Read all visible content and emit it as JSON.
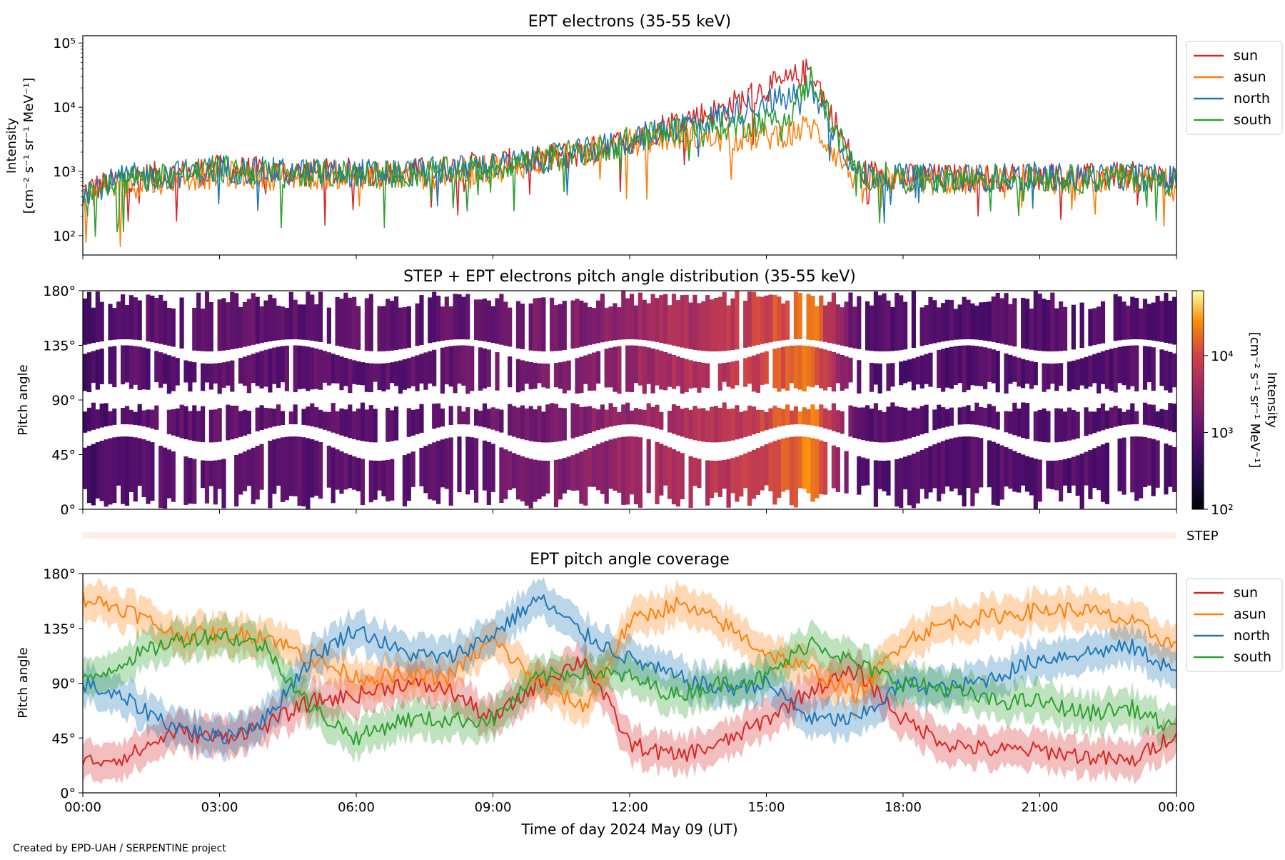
{
  "figure": {
    "credit": "Created by EPD-UAH / SERPENTINE project",
    "xlabel": "Time of day 2024 May 09 (UT)",
    "xticks": [
      "00:00",
      "03:00",
      "06:00",
      "09:00",
      "12:00",
      "15:00",
      "18:00",
      "21:00",
      "00:00"
    ]
  },
  "colors": {
    "sun": "#d62728",
    "asun": "#ff7f0e",
    "north": "#1f77b4",
    "south": "#2ca02c"
  },
  "chart_data": [
    {
      "type": "line",
      "title": "EPT electrons (35-55 keV)",
      "ylabel": [
        "Intensity",
        "[cm⁻² s⁻¹ sr⁻¹ MeV⁻¹]"
      ],
      "yscale": "log",
      "ylim": [
        50,
        130000
      ],
      "yticks": [
        {
          "v": 100,
          "label": "10²"
        },
        {
          "v": 1000,
          "label": "10³"
        },
        {
          "v": 10000,
          "label": "10⁴"
        },
        {
          "v": 100000,
          "label": "10⁵"
        }
      ],
      "xlim": [
        0,
        24
      ],
      "x_unit": "hours UT, 2024 May 09",
      "legend_position": "outside-right-top",
      "x": [
        0,
        1,
        2,
        3,
        4,
        5,
        6,
        7,
        8,
        9,
        10,
        11,
        12,
        13,
        14,
        15,
        15.5,
        16,
        16.3,
        17,
        18,
        19,
        20,
        21,
        22,
        23,
        24
      ],
      "series": [
        {
          "name": "sun",
          "values": [
            500,
            800,
            900,
            1100,
            1000,
            950,
            1000,
            950,
            1100,
            1300,
            1500,
            2000,
            3000,
            6000,
            9000,
            20000,
            25000,
            40000,
            12000,
            1000,
            800,
            800,
            800,
            850,
            800,
            850,
            750
          ]
        },
        {
          "name": "asun",
          "values": [
            400,
            600,
            800,
            900,
            850,
            850,
            900,
            850,
            900,
            1100,
            1400,
            1900,
            2800,
            3500,
            3200,
            3500,
            4000,
            5000,
            3000,
            700,
            700,
            700,
            750,
            750,
            700,
            750,
            650
          ]
        },
        {
          "name": "north",
          "values": [
            500,
            800,
            900,
            1100,
            1000,
            950,
            950,
            950,
            1050,
            1200,
            1500,
            2000,
            3000,
            5000,
            7000,
            12000,
            14000,
            18000,
            8000,
            900,
            800,
            800,
            800,
            850,
            800,
            850,
            750
          ]
        },
        {
          "name": "south",
          "values": [
            450,
            750,
            900,
            1100,
            950,
            900,
            950,
            900,
            1000,
            1200,
            1500,
            2000,
            3000,
            4500,
            5000,
            6000,
            8000,
            30000,
            9000,
            900,
            750,
            750,
            800,
            800,
            750,
            800,
            700
          ]
        }
      ]
    },
    {
      "type": "heatmap",
      "title": "STEP + EPT electrons pitch angle distribution (35-55 keV)",
      "ylabel": "Pitch angle",
      "ylim": [
        0,
        180
      ],
      "yticks": [
        "0°",
        "45°",
        "90°",
        "135°",
        "180°"
      ],
      "xlim": [
        0,
        24
      ],
      "colorbar": {
        "label": [
          "Intensity",
          "[cm⁻² s⁻¹ sr⁻¹ MeV⁻¹]"
        ],
        "scale": "log",
        "range": [
          100,
          70000
        ],
        "ticks": [
          {
            "v": 100,
            "label": "10²"
          },
          {
            "v": 1000,
            "label": "10³"
          },
          {
            "v": 10000,
            "label": "10⁴"
          }
        ],
        "colormap": "inferno"
      },
      "x": [
        0,
        1,
        2,
        3,
        4,
        5,
        6,
        7,
        8,
        9,
        10,
        11,
        12,
        13,
        14,
        15,
        15.5,
        16,
        16.3,
        17,
        18,
        19,
        20,
        21,
        22,
        23,
        24
      ],
      "intensity": [
        500,
        800,
        900,
        1050,
        950,
        900,
        950,
        900,
        1000,
        1200,
        1500,
        2000,
        3000,
        4500,
        6000,
        10000,
        14000,
        25000,
        8000,
        900,
        750,
        750,
        800,
        800,
        750,
        800,
        700
      ]
    },
    {
      "type": "bar",
      "series_name": "STEP",
      "label": "STEP",
      "xlim": [
        0,
        24
      ]
    },
    {
      "type": "area",
      "title": "EPT pitch angle coverage",
      "ylabel": "Pitch angle",
      "ylim": [
        0,
        180
      ],
      "yticks": [
        "0°",
        "45°",
        "90°",
        "135°",
        "180°"
      ],
      "xlim": [
        0,
        24
      ],
      "band_halfwidth": 15,
      "legend_position": "outside-right-top",
      "x": [
        0,
        1,
        2,
        3,
        4,
        5,
        6,
        7,
        8,
        9,
        10,
        11,
        12,
        13,
        14,
        15,
        16,
        17,
        18,
        19,
        20,
        21,
        22,
        23,
        24
      ],
      "series": [
        {
          "name": "sun",
          "values": [
            25,
            30,
            50,
            45,
            55,
            75,
            80,
            90,
            85,
            60,
            90,
            110,
            40,
            30,
            40,
            60,
            85,
            100,
            60,
            40,
            35,
            35,
            30,
            25,
            50
          ]
        },
        {
          "name": "asun",
          "values": [
            160,
            150,
            130,
            130,
            130,
            110,
            95,
            95,
            95,
            125,
            90,
            70,
            140,
            155,
            140,
            115,
            100,
            80,
            125,
            140,
            145,
            150,
            150,
            140,
            120
          ]
        },
        {
          "name": "north",
          "values": [
            90,
            75,
            55,
            45,
            60,
            110,
            135,
            115,
            110,
            130,
            160,
            130,
            110,
            95,
            85,
            90,
            60,
            60,
            90,
            85,
            95,
            110,
            115,
            120,
            100
          ]
        },
        {
          "name": "south",
          "values": [
            90,
            110,
            125,
            130,
            120,
            70,
            45,
            60,
            60,
            60,
            95,
            100,
            95,
            80,
            90,
            95,
            125,
            105,
            90,
            85,
            75,
            75,
            65,
            70,
            50
          ]
        }
      ]
    }
  ]
}
